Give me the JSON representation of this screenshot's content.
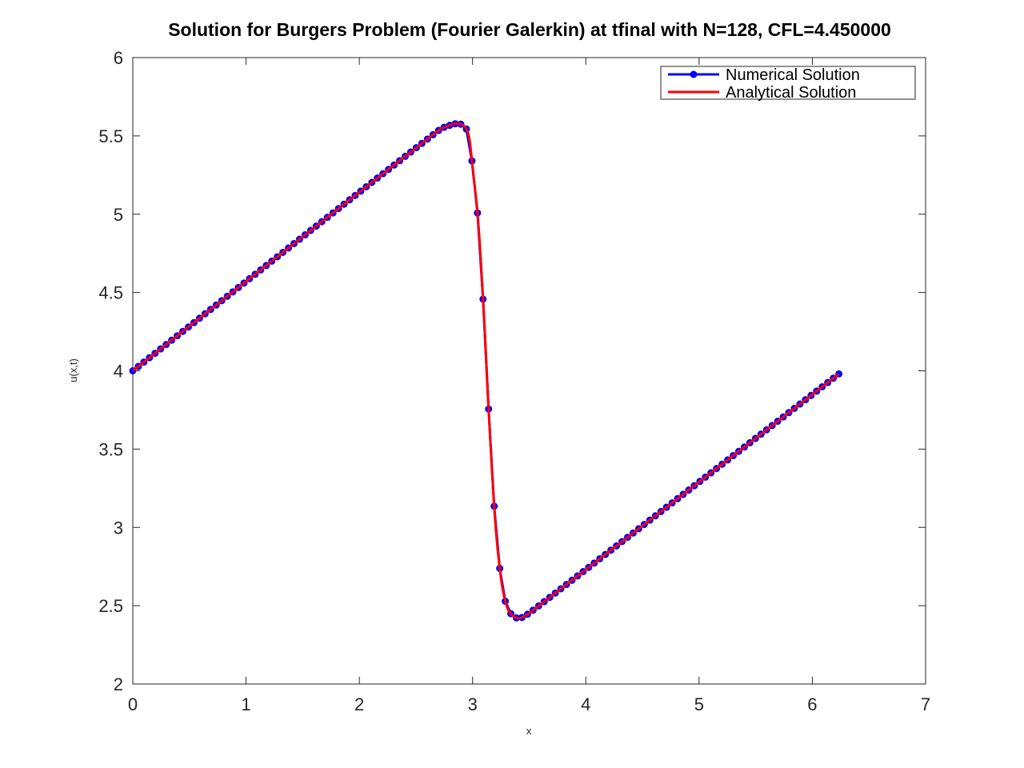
{
  "chart_data": {
    "type": "line",
    "title": "Solution for Burgers Problem (Fourier Galerkin) at tfinal with N=128, CFL=4.450000",
    "xlabel": "x",
    "ylabel": "u(x,t)",
    "xlim": [
      0,
      7
    ],
    "ylim": [
      2,
      6
    ],
    "xticks": [
      0,
      1,
      2,
      3,
      4,
      5,
      6,
      7
    ],
    "xtick_labels": [
      "0",
      "1",
      "2",
      "3",
      "4",
      "5",
      "6",
      "7"
    ],
    "yticks": [
      2,
      2.5,
      3,
      3.5,
      4,
      4.5,
      5,
      5.5,
      6
    ],
    "ytick_labels": [
      "2",
      "2.5",
      "3",
      "3.5",
      "4",
      "4.5",
      "5",
      "5.5",
      "6"
    ],
    "grid": false,
    "legend_position": "top-right",
    "n_points": 128,
    "x_range": [
      0,
      6.2341
    ],
    "series": [
      {
        "name": "Numerical Solution",
        "color": "#0000ff",
        "marker": "circle",
        "marker_face": "#0000ff",
        "anchors": [
          [
            0,
            4.0
          ],
          [
            2.7,
            5.535
          ],
          [
            2.8,
            5.568
          ],
          [
            2.87,
            5.578
          ],
          [
            2.93,
            5.558
          ],
          [
            2.97,
            5.49
          ],
          [
            3.0,
            5.3
          ],
          [
            3.05,
            4.95
          ],
          [
            3.1,
            4.36
          ],
          [
            3.15,
            3.64
          ],
          [
            3.2,
            3.04
          ],
          [
            3.25,
            2.68
          ],
          [
            3.3,
            2.5
          ],
          [
            3.35,
            2.44
          ],
          [
            3.4,
            2.42
          ],
          [
            3.45,
            2.43
          ],
          [
            3.55,
            2.48
          ],
          [
            6.2341,
            3.98
          ]
        ]
      },
      {
        "name": "Analytical Solution",
        "color": "#ff0000",
        "marker": "none",
        "anchors": [
          [
            0,
            4.0
          ],
          [
            2.7,
            5.535
          ],
          [
            2.8,
            5.568
          ],
          [
            2.87,
            5.578
          ],
          [
            2.93,
            5.558
          ],
          [
            2.97,
            5.49
          ],
          [
            3.0,
            5.3
          ],
          [
            3.05,
            4.95
          ],
          [
            3.1,
            4.36
          ],
          [
            3.15,
            3.64
          ],
          [
            3.2,
            3.04
          ],
          [
            3.25,
            2.68
          ],
          [
            3.3,
            2.5
          ],
          [
            3.35,
            2.44
          ],
          [
            3.4,
            2.42
          ],
          [
            3.45,
            2.43
          ],
          [
            3.55,
            2.48
          ],
          [
            6.2341,
            3.98
          ]
        ]
      }
    ]
  }
}
